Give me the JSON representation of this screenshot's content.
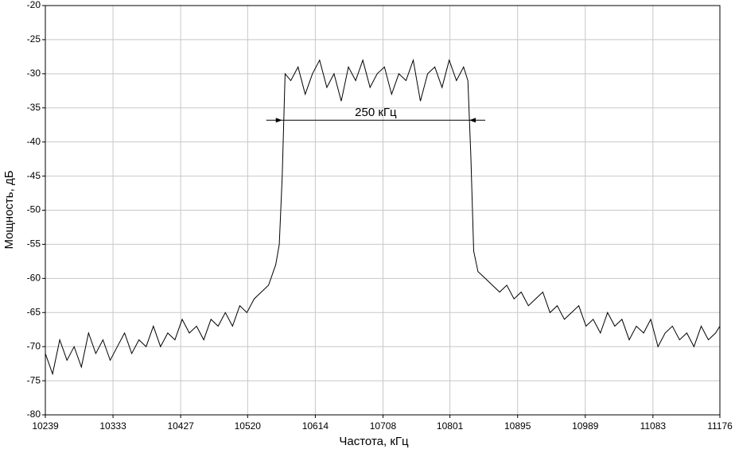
{
  "chart_data": {
    "type": "line",
    "xlabel": "Частота, кГц",
    "ylabel": "Мощность, дБ",
    "xlim": [
      10239,
      11176
    ],
    "xticks": [
      10239,
      10333,
      10427,
      10520,
      10614,
      10708,
      10801,
      10895,
      10989,
      11083,
      11176
    ],
    "ylim": [
      -80,
      -20
    ],
    "yticks": [
      -80,
      -75,
      -70,
      -65,
      -60,
      -55,
      -50,
      -45,
      -40,
      -35,
      -30,
      -25,
      -20
    ],
    "grid": true,
    "annotation": {
      "text": "250 кГц",
      "x": [
        10568,
        10828
      ],
      "y": -36.8
    },
    "series": [
      {
        "color": "#000000",
        "x": [
          10239,
          10249,
          10259,
          10269,
          10279,
          10289,
          10299,
          10309,
          10319,
          10329,
          10339,
          10349,
          10359,
          10369,
          10379,
          10389,
          10399,
          10409,
          10419,
          10429,
          10439,
          10449,
          10459,
          10469,
          10479,
          10489,
          10499,
          10509,
          10519,
          10529,
          10539,
          10549,
          10559,
          10564,
          10568,
          10572,
          10580,
          10590,
          10600,
          10610,
          10620,
          10630,
          10640,
          10650,
          10660,
          10670,
          10680,
          10690,
          10700,
          10710,
          10720,
          10730,
          10740,
          10750,
          10760,
          10770,
          10780,
          10790,
          10800,
          10810,
          10820,
          10826,
          10830,
          10834,
          10840,
          10850,
          10860,
          10870,
          10880,
          10890,
          10900,
          10910,
          10920,
          10930,
          10940,
          10950,
          10960,
          10970,
          10980,
          10990,
          11000,
          11010,
          11020,
          11030,
          11040,
          11050,
          11060,
          11070,
          11080,
          11090,
          11100,
          11110,
          11120,
          11130,
          11140,
          11150,
          11160,
          11170,
          11176
        ],
        "values": [
          -71,
          -74,
          -69,
          -72,
          -70,
          -73,
          -68,
          -71,
          -69,
          -72,
          -70,
          -68,
          -71,
          -69,
          -70,
          -67,
          -70,
          -68,
          -69,
          -66,
          -68,
          -67,
          -69,
          -66,
          -67,
          -65,
          -67,
          -64,
          -65,
          -63,
          -62,
          -61,
          -58,
          -55,
          -45,
          -30,
          -31,
          -29,
          -33,
          -30,
          -28,
          -32,
          -30,
          -34,
          -29,
          -31,
          -28,
          -32,
          -30,
          -29,
          -33,
          -30,
          -31,
          -28,
          -34,
          -30,
          -29,
          -32,
          -28,
          -31,
          -29,
          -31,
          -42,
          -56,
          -59,
          -60,
          -61,
          -62,
          -61,
          -63,
          -62,
          -64,
          -63,
          -62,
          -65,
          -64,
          -66,
          -65,
          -64,
          -67,
          -66,
          -68,
          -65,
          -67,
          -66,
          -69,
          -67,
          -68,
          -66,
          -70,
          -68,
          -67,
          -69,
          -68,
          -70,
          -67,
          -69,
          -68,
          -67
        ]
      }
    ]
  }
}
